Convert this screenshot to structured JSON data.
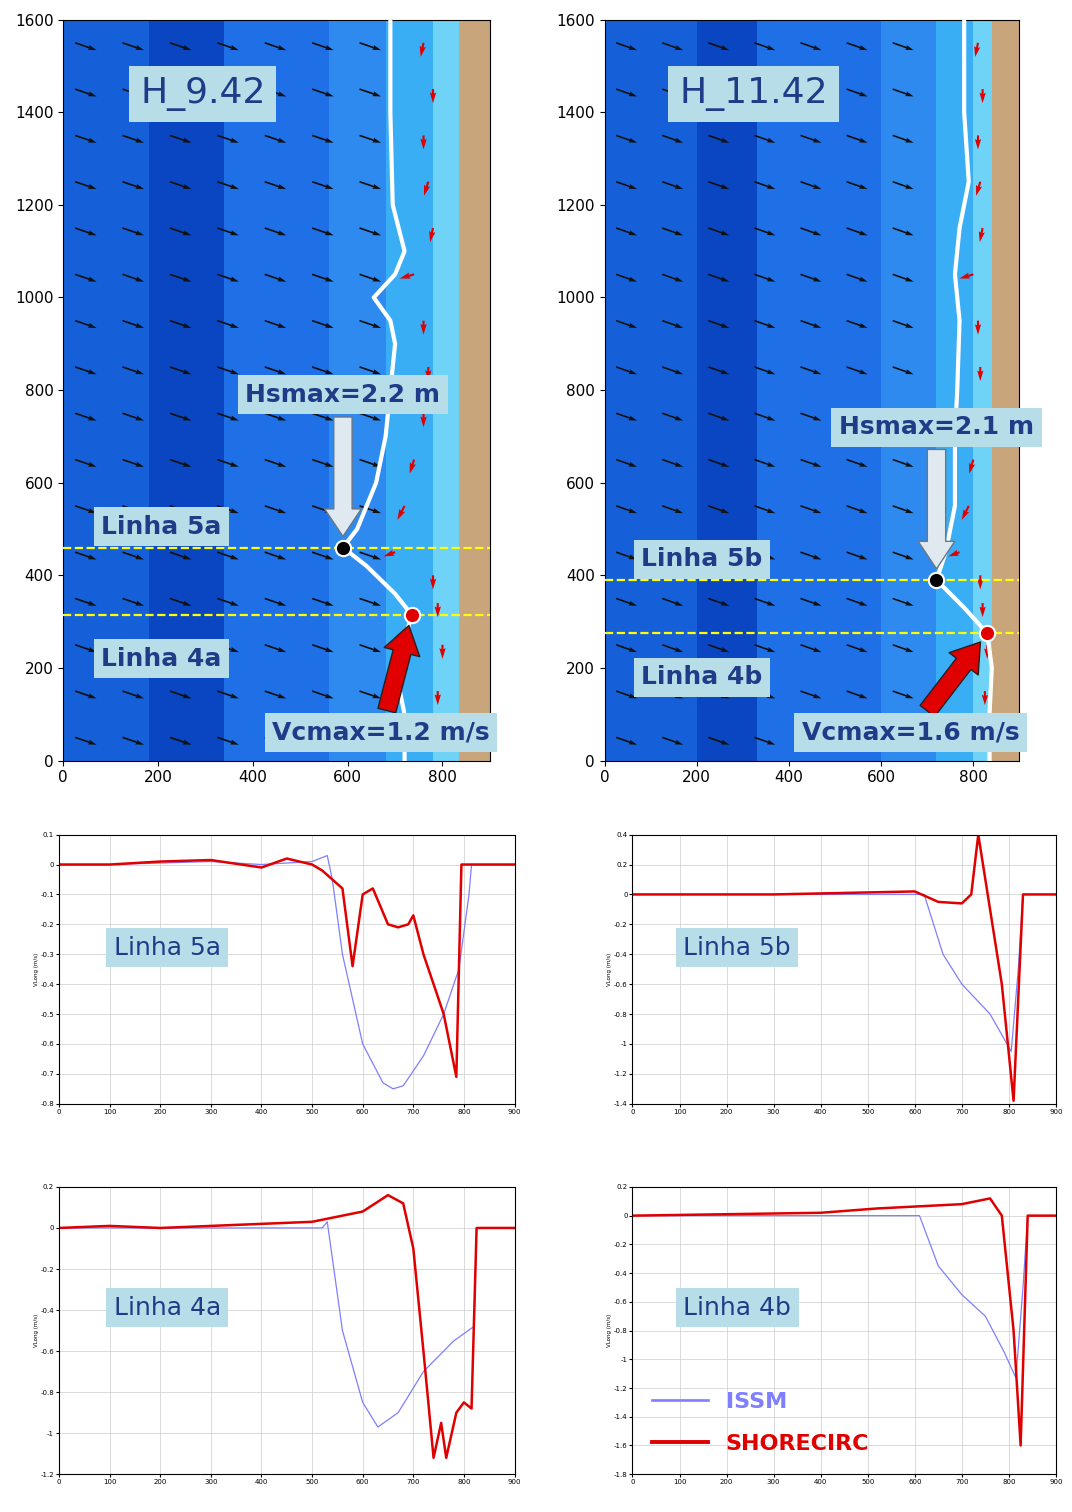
{
  "chart_data": [
    {
      "type": "map",
      "title": "H_9.42",
      "xlim": [
        0,
        900
      ],
      "ylim": [
        0,
        1600
      ],
      "xticks": [
        0,
        200,
        400,
        600,
        800
      ],
      "yticks": [
        0,
        200,
        400,
        600,
        800,
        1000,
        1200,
        1400,
        1600
      ],
      "zones": [
        {
          "x": [
            0,
            180
          ],
          "color": "#1560d8"
        },
        {
          "x": [
            180,
            340
          ],
          "color": "#0a46c2"
        },
        {
          "x": [
            340,
            560
          ],
          "color": "#1f6fe6"
        },
        {
          "x": [
            560,
            680
          ],
          "color": "#2f8af0"
        },
        {
          "x": [
            680,
            780
          ],
          "color": "#3aaef5"
        },
        {
          "x": [
            780,
            835
          ],
          "color": "#6fd3f7"
        },
        {
          "x": [
            835,
            900
          ],
          "color": "#c8a57a"
        }
      ],
      "wave_vectors": {
        "x": [
          25,
          125,
          225,
          325,
          425,
          525,
          625
        ],
        "y": [
          50,
          150,
          250,
          350,
          450,
          550,
          650,
          750,
          850,
          950,
          1050,
          1150,
          1250,
          1350,
          1450,
          1550
        ],
        "u": 1,
        "v": -0.35,
        "color": "#111111"
      },
      "current_vectors": {
        "x": [
          760,
          780,
          760,
          770,
          780,
          740,
          760,
          770,
          760,
          740,
          720,
          700,
          780,
          790,
          800,
          790,
          780
        ],
        "y": [
          1550,
          1450,
          1350,
          1250,
          1150,
          1050,
          950,
          850,
          750,
          650,
          550,
          450,
          400,
          340,
          250,
          150,
          60
        ],
        "u": [
          -0.2,
          0,
          0,
          -0.3,
          -0.2,
          -1,
          0,
          0,
          0,
          -0.3,
          -0.5,
          -0.8,
          0,
          0,
          0,
          0,
          0
        ],
        "v": [
          -1,
          -1,
          -1,
          -1,
          -1,
          -0.3,
          -1,
          -1,
          -1,
          -1,
          -1,
          -0.3,
          -1,
          -1,
          -1,
          -1,
          -1
        ],
        "color": "#e00000"
      },
      "breaker_line": {
        "x": [
          690,
          690,
          695,
          720,
          700,
          655,
          690,
          700,
          690,
          680,
          660,
          620,
          590,
          640,
          700,
          735,
          720,
          700,
          720,
          720
        ],
        "y": [
          1600,
          1400,
          1200,
          1100,
          1050,
          1000,
          950,
          900,
          800,
          700,
          600,
          500,
          460,
          420,
          360,
          315,
          260,
          200,
          100,
          0
        ]
      },
      "sections": [
        {
          "name": "Linha 5a",
          "y": 460
        },
        {
          "name": "Linha 4a",
          "y": 315
        }
      ],
      "points": [
        {
          "x": 590,
          "y": 460,
          "color": "#000000",
          "label": "Hsmax=2.2 m"
        },
        {
          "x": 735,
          "y": 315,
          "color": "#e00000",
          "label": "Vcmax=1.2 m/s"
        }
      ]
    },
    {
      "type": "map",
      "title": "H_11.42",
      "xlim": [
        0,
        900
      ],
      "ylim": [
        0,
        1600
      ],
      "xticks": [
        0,
        200,
        400,
        600,
        800
      ],
      "yticks": [
        0,
        200,
        400,
        600,
        800,
        1000,
        1200,
        1400,
        1600
      ],
      "zones": [
        {
          "x": [
            0,
            200
          ],
          "color": "#1560d8"
        },
        {
          "x": [
            200,
            330
          ],
          "color": "#0a46c2"
        },
        {
          "x": [
            330,
            600
          ],
          "color": "#1f6fe6"
        },
        {
          "x": [
            600,
            720
          ],
          "color": "#2f8af0"
        },
        {
          "x": [
            720,
            800
          ],
          "color": "#3aaef5"
        },
        {
          "x": [
            800,
            840
          ],
          "color": "#6fd3f7"
        },
        {
          "x": [
            840,
            900
          ],
          "color": "#c8a57a"
        }
      ],
      "wave_vectors": {
        "x": [
          25,
          125,
          225,
          325,
          425,
          525,
          625
        ],
        "y": [
          50,
          150,
          250,
          350,
          450,
          550,
          650,
          750,
          850,
          950,
          1050,
          1150,
          1250,
          1350,
          1450,
          1550
        ],
        "u": 1,
        "v": -0.35,
        "color": "#111111"
      },
      "current_vectors": {
        "x": [
          810,
          820,
          810,
          815,
          820,
          800,
          810,
          815,
          810,
          800,
          790,
          770,
          815,
          820,
          830,
          825,
          820
        ],
        "y": [
          1550,
          1450,
          1350,
          1250,
          1150,
          1050,
          950,
          850,
          750,
          650,
          550,
          450,
          400,
          340,
          250,
          150,
          60
        ],
        "u": [
          -0.2,
          0,
          0,
          -0.3,
          -0.2,
          -1,
          0,
          0,
          0,
          -0.3,
          -0.5,
          -0.8,
          0,
          0,
          0,
          0,
          0
        ],
        "v": [
          -1,
          -1,
          -1,
          -1,
          -1,
          -0.3,
          -1,
          -1,
          -1,
          -1,
          -1,
          -0.3,
          -1,
          -1,
          -1,
          -1,
          -1
        ],
        "color": "#e00000"
      },
      "breaker_line": {
        "x": [
          780,
          780,
          790,
          770,
          760,
          770,
          765,
          760,
          760,
          740,
          720,
          780,
          830,
          840,
          835,
          835
        ],
        "y": [
          1600,
          1400,
          1250,
          1150,
          1050,
          950,
          800,
          700,
          550,
          450,
          390,
          330,
          275,
          200,
          100,
          0
        ]
      },
      "sections": [
        {
          "name": "Linha 5b",
          "y": 390
        },
        {
          "name": "Linha 4b",
          "y": 275
        }
      ],
      "points": [
        {
          "x": 720,
          "y": 390,
          "color": "#000000",
          "label": "Hsmax=2.1 m"
        },
        {
          "x": 830,
          "y": 275,
          "color": "#e00000",
          "label": "Vcmax=1.6 m/s"
        }
      ]
    },
    {
      "type": "line",
      "title": "Linha 5a",
      "y_label": "VLong (m/s)",
      "grid": true,
      "xlim": [
        0,
        900
      ],
      "xticks": [
        0,
        100,
        200,
        300,
        400,
        500,
        600,
        700,
        800,
        900
      ],
      "ylim": [
        -0.8,
        0.1
      ],
      "yticks": [
        -0.8,
        -0.7,
        -0.6,
        -0.5,
        -0.4,
        -0.3,
        -0.2,
        -0.1,
        0,
        0.1
      ],
      "series": [
        {
          "name": "ISSM",
          "color": "#7f7fff",
          "x": [
            0,
            100,
            200,
            300,
            400,
            500,
            530,
            540,
            560,
            600,
            640,
            660,
            680,
            720,
            760,
            790,
            810,
            815,
            900
          ],
          "values": [
            0,
            0,
            0.005,
            0.01,
            0,
            0.01,
            0.03,
            -0.05,
            -0.3,
            -0.6,
            -0.73,
            -0.75,
            -0.74,
            -0.64,
            -0.5,
            -0.35,
            -0.1,
            0,
            0
          ]
        },
        {
          "name": "SHORECIRC",
          "color": "#e00000",
          "x": [
            0,
            100,
            200,
            300,
            400,
            450,
            500,
            520,
            560,
            580,
            600,
            620,
            650,
            670,
            690,
            700,
            720,
            760,
            785,
            795,
            900
          ],
          "values": [
            0,
            0,
            0.01,
            0.015,
            -0.01,
            0.02,
            0,
            -0.02,
            -0.08,
            -0.34,
            -0.1,
            -0.08,
            -0.2,
            -0.21,
            -0.2,
            -0.17,
            -0.3,
            -0.5,
            -0.71,
            0,
            0
          ]
        }
      ]
    },
    {
      "type": "line",
      "title": "Linha 5b",
      "y_label": "VLong (m/s)",
      "grid": true,
      "xlim": [
        0,
        900
      ],
      "xticks": [
        0,
        100,
        200,
        300,
        400,
        500,
        600,
        700,
        800,
        900
      ],
      "ylim": [
        -1.4,
        0.4
      ],
      "yticks": [
        -1.4,
        -1.2,
        -1,
        -0.8,
        -0.6,
        -0.4,
        -0.2,
        0,
        0.2,
        0.4
      ],
      "series": [
        {
          "name": "ISSM",
          "color": "#7f7fff",
          "x": [
            0,
            300,
            620,
            660,
            700,
            760,
            805,
            820,
            830,
            900
          ],
          "values": [
            0,
            0,
            0,
            -0.4,
            -0.6,
            -0.8,
            -1.05,
            -0.5,
            0,
            0
          ]
        },
        {
          "name": "SHORECIRC",
          "color": "#e00000",
          "x": [
            0,
            300,
            600,
            650,
            700,
            720,
            735,
            755,
            785,
            810,
            830,
            900
          ],
          "values": [
            0,
            0,
            0.02,
            -0.05,
            -0.06,
            0,
            0.4,
            0,
            -0.6,
            -1.38,
            0,
            0
          ]
        }
      ]
    },
    {
      "type": "line",
      "title": "Linha 4a",
      "y_label": "VLong (m/s)",
      "grid": true,
      "xlim": [
        0,
        900
      ],
      "xticks": [
        0,
        100,
        200,
        300,
        400,
        500,
        600,
        700,
        800,
        900
      ],
      "ylim": [
        -1.2,
        0.2
      ],
      "yticks": [
        -1.2,
        -1,
        -0.8,
        -0.6,
        -0.4,
        -0.2,
        0,
        0.2
      ],
      "series": [
        {
          "name": "ISSM",
          "color": "#7f7fff",
          "x": [
            0,
            200,
            520,
            530,
            560,
            600,
            630,
            670,
            720,
            780,
            820,
            825,
            900
          ],
          "values": [
            0,
            0,
            0,
            0.03,
            -0.5,
            -0.85,
            -0.97,
            -0.9,
            -0.7,
            -0.55,
            -0.48,
            0,
            0
          ]
        },
        {
          "name": "SHORECIRC",
          "color": "#e00000",
          "x": [
            0,
            100,
            200,
            500,
            600,
            650,
            680,
            700,
            720,
            740,
            755,
            765,
            785,
            800,
            815,
            825,
            900
          ],
          "values": [
            0,
            0.01,
            0,
            0.03,
            0.08,
            0.16,
            0.12,
            -0.1,
            -0.6,
            -1.12,
            -0.95,
            -1.12,
            -0.9,
            -0.85,
            -0.88,
            0,
            0
          ]
        }
      ]
    },
    {
      "type": "line",
      "title": "Linha 4b",
      "y_label": "VLong (m/s)",
      "grid": true,
      "legend": "lower left",
      "xlim": [
        0,
        900
      ],
      "xticks": [
        0,
        100,
        200,
        300,
        400,
        500,
        600,
        700,
        800,
        900
      ],
      "ylim": [
        -1.8,
        0.2
      ],
      "yticks": [
        -1.8,
        -1.6,
        -1.4,
        -1.2,
        -1,
        -0.8,
        -0.6,
        -0.4,
        -0.2,
        0,
        0.2
      ],
      "series": [
        {
          "name": "ISSM",
          "color": "#7f7fff",
          "x": [
            0,
            300,
            610,
            650,
            700,
            750,
            790,
            815,
            830,
            840,
            900
          ],
          "values": [
            0,
            0,
            0,
            -0.35,
            -0.55,
            -0.7,
            -0.95,
            -1.13,
            -0.5,
            0,
            0
          ]
        },
        {
          "name": "SHORECIRC",
          "color": "#e00000",
          "x": [
            0,
            400,
            520,
            700,
            760,
            785,
            810,
            825,
            840,
            900
          ],
          "values": [
            0,
            0.02,
            0.05,
            0.08,
            0.12,
            0,
            -0.8,
            -1.6,
            0,
            0
          ]
        }
      ]
    }
  ]
}
